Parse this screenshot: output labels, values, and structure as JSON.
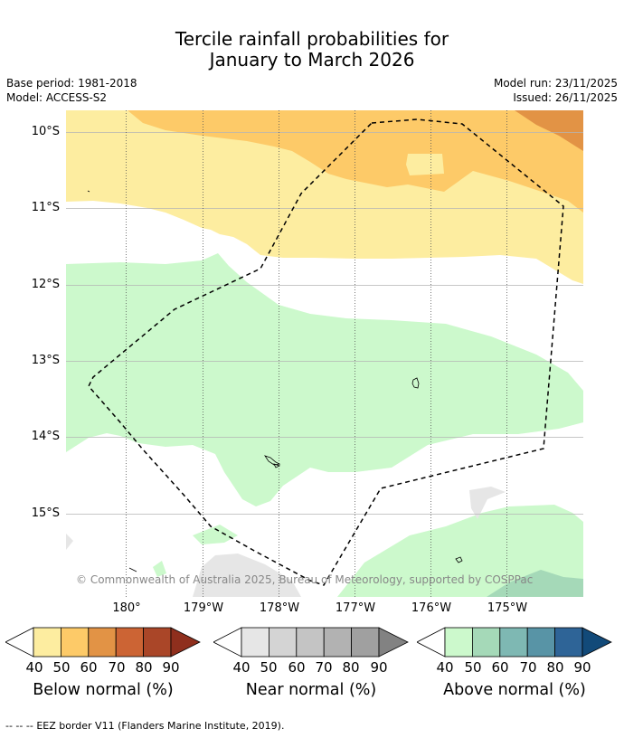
{
  "title": {
    "line1": "Tercile rainfall probabilities for",
    "line2": "January to March 2026"
  },
  "meta": {
    "base_period": "Base period: 1981-2018",
    "model": "Model: ACCESS-S2",
    "model_run": "Model run: 23/11/2025",
    "issued": "Issued: 26/11/2025"
  },
  "map": {
    "lat_labels": [
      "10°S",
      "11°S",
      "12°S",
      "13°S",
      "14°S",
      "15°S"
    ],
    "lon_labels": [
      "180°",
      "179°W",
      "178°W",
      "177°W",
      "176°W",
      "175°W"
    ],
    "copyright": "© Commonwealth of Australia 2025, Bureau of Meteorology, supported by COSPPac",
    "eez_label": "EEZ border V11 (Flanders Marine Institute, 2019)."
  },
  "legend": {
    "tick_labels": [
      "40",
      "50",
      "60",
      "70",
      "80",
      "90"
    ],
    "below_title": "Below normal (%)",
    "near_title": "Near normal (%)",
    "above_title": "Above normal (%)",
    "below_colors": [
      "#fdeda0",
      "#fdca68",
      "#e29345",
      "#cc6434",
      "#aa4628",
      "#8f2f1d"
    ],
    "near_colors": [
      "#e6e6e6",
      "#d4d4d4",
      "#c4c4c4",
      "#b2b2b2",
      "#a0a0a0",
      "#828282"
    ],
    "above_colors": [
      "#ccf9cc",
      "#a5d9b8",
      "#7eb8b3",
      "#5894a6",
      "#2e6497",
      "#124a79"
    ]
  },
  "footer": {
    "line_symbol": "--  --  --",
    "text": "EEZ border V11 (Flanders Marine Institute, 2019)."
  }
}
